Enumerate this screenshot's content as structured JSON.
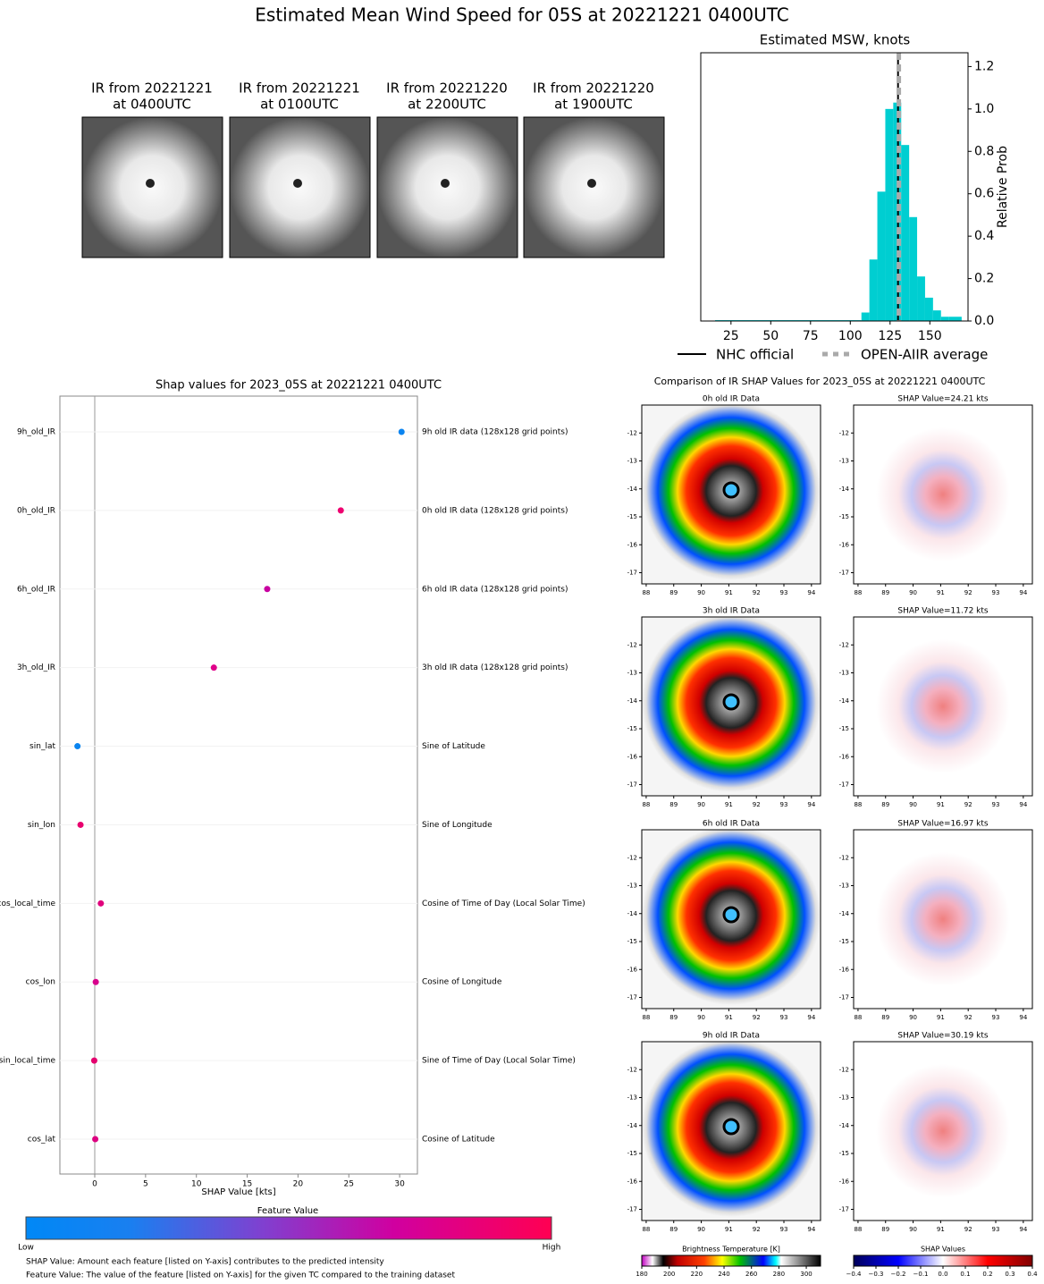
{
  "title": "Estimated Mean Wind Speed for 05S at 20221221 0400UTC",
  "ir_panels": [
    {
      "lines": [
        "IR from 20221221",
        "at 0400UTC"
      ]
    },
    {
      "lines": [
        "IR from 20221221",
        "at 0100UTC"
      ]
    },
    {
      "lines": [
        "IR from 20221220",
        "at 2200UTC"
      ]
    },
    {
      "lines": [
        "IR from 20221220",
        "at 1900UTC"
      ]
    }
  ],
  "chart_data": [
    {
      "type": "histogram",
      "title": "Estimated MSW, knots",
      "y2label": "Relative Prob",
      "color": "#00ced1",
      "bins": [
        15,
        107,
        112,
        117,
        122,
        127,
        132,
        137,
        142,
        147,
        152,
        157,
        162,
        170
      ],
      "values": [
        0.004,
        0.04,
        0.29,
        0.61,
        1.0,
        1.03,
        0.83,
        0.49,
        0.21,
        0.11,
        0.05,
        0.02,
        0.02
      ],
      "xlim": [
        6,
        174
      ],
      "xticks": [
        25,
        50,
        75,
        100,
        125,
        150
      ],
      "y2lim": [
        0,
        1.265
      ],
      "y2ticks": [
        {
          "value": 0,
          "label": "0.0"
        },
        {
          "value": 0.2,
          "label": "0.2"
        },
        {
          "value": 0.4,
          "label": "0.4"
        },
        {
          "value": 0.6,
          "label": "0.6"
        },
        {
          "value": 0.8,
          "label": "0.8"
        },
        {
          "value": 1.0,
          "label": "1.0"
        },
        {
          "value": 1.2,
          "label": "1.2"
        }
      ],
      "lines": [
        {
          "name": "NHC official",
          "value": 130,
          "color": "#000000",
          "dashed": false
        },
        {
          "name": "OPEN-AIIR average",
          "value": 130.5,
          "color": "#aaaaaa",
          "dashed": true
        }
      ]
    },
    {
      "type": "dot",
      "title": "Shap values for 2023_05S at 20221221 0400UTC",
      "xlabel": "SHAP Value [kts]",
      "categories": [
        "9h_old_IR",
        "0h_old_IR",
        "6h_old_IR",
        "3h_old_IR",
        "sin_lat",
        "sin_lon",
        "cos_local_time",
        "cos_lon",
        "sin_local_time",
        "cos_lat"
      ],
      "descriptions": [
        "9h old IR data (128x128 grid points)",
        "0h old IR data (128x128 grid points)",
        "6h old IR data (128x128 grid points)",
        "3h old IR data (128x128 grid points)",
        "Sine of Latitude",
        "Sine of Longitude",
        "Cosine of Time of Day (Local Solar Time)",
        "Cosine of Longitude",
        "Sine of Time of Day (Local Solar Time)",
        "Cosine of Latitude"
      ],
      "values": [
        30.19,
        24.21,
        16.97,
        11.72,
        -1.7,
        -1.4,
        0.6,
        0.1,
        -0.05,
        0.05
      ],
      "colors": [
        "#0a84f0",
        "#ee0070",
        "#c800a0",
        "#e0008a",
        "#0a84f0",
        "#e8006e",
        "#e0007c",
        "#d8008c",
        "#e4006e",
        "#dd0080"
      ],
      "xlim": [
        -3.43,
        31.75
      ],
      "xticks": [
        0,
        5,
        10,
        15,
        20,
        25,
        30
      ],
      "colorbar": {
        "title": "Feature Value",
        "low": "Low",
        "high": "High"
      }
    }
  ],
  "comparison": {
    "title": "Comparison of IR SHAP Values for 2023_05S at 20221221 0400UTC",
    "panels": [
      {
        "ir_title": "0h old IR Data",
        "shap_title": "SHAP Value=24.21 kts"
      },
      {
        "ir_title": "3h old IR Data",
        "shap_title": "SHAP Value=11.72 kts"
      },
      {
        "ir_title": "6h old IR Data",
        "shap_title": "SHAP Value=16.97 kts"
      },
      {
        "ir_title": "9h old IR Data",
        "shap_title": "SHAP Value=30.19 kts"
      }
    ],
    "xlim": [
      87.84,
      94.33
    ],
    "xticks": [
      88,
      89,
      90,
      91,
      92,
      93,
      94
    ],
    "ylim": [
      -11.0,
      -17.4
    ],
    "yticks": [
      -12,
      -13,
      -14,
      -15,
      -16,
      -17
    ],
    "bt_colorbar": {
      "title": "Brightness Temperature [K]",
      "lim": [
        180,
        310.4
      ],
      "ticks": [
        180,
        200,
        220,
        240,
        260,
        280,
        300
      ]
    },
    "shap_colorbar": {
      "title": "SHAP Values",
      "lim": [
        -0.4,
        0.4
      ],
      "ticks": [
        {
          "value": -0.4,
          "label": "−0.4"
        },
        {
          "value": -0.3,
          "label": "−0.3"
        },
        {
          "value": -0.2,
          "label": "−0.2"
        },
        {
          "value": -0.1,
          "label": "−0.1"
        },
        {
          "value": 0.0,
          "label": "0.0"
        },
        {
          "value": 0.1,
          "label": "0.1"
        },
        {
          "value": 0.2,
          "label": "0.2"
        },
        {
          "value": 0.3,
          "label": "0.3"
        },
        {
          "value": 0.4,
          "label": "0.4"
        }
      ]
    }
  },
  "footnotes": [
    "SHAP Value: Amount each feature [listed on Y-axis] contributes to the predicted intensity",
    "Feature Value: The value of the feature [listed on Y-axis] for the given TC compared to the training dataset"
  ]
}
